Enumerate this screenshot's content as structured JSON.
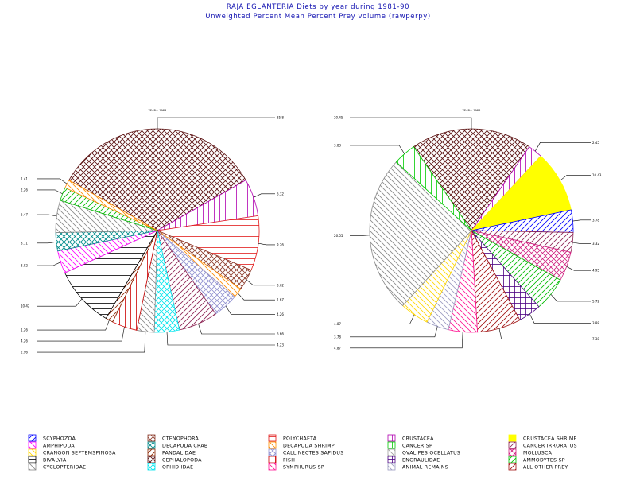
{
  "chart_data": {
    "type": "pie",
    "title": "RAJA EGLANTERIA Diets by year during 1981-90",
    "subtitle": "Unweighted Percent Mean Percent Prey  volume (rawperpy)",
    "legend_position": "bottom",
    "pies": [
      {
        "name": "YEAR= 1983",
        "slices": [
          {
            "category": "CEPHALOPODA",
            "value": 35.8,
            "label": "35.8"
          },
          {
            "category": "CRUSTACEA",
            "value": 6.32,
            "label": "6.32"
          },
          {
            "category": "POLYCHAETA",
            "value": 9.26,
            "label": "9.26"
          },
          {
            "category": "CTENOPHORA",
            "value": 3.62,
            "label": "3.62"
          },
          {
            "category": "DECAPODA SHRIMP",
            "value": 1.67,
            "label": "1.67"
          },
          {
            "category": "CALLINECTES SAPIDUS",
            "value": 4.26,
            "label": "4.26"
          },
          {
            "category": "CANCER IRRORATUS",
            "value": 6.66,
            "label": "6.66"
          },
          {
            "category": "OPHIDIIDAE",
            "value": 4.23,
            "label": "4.23"
          },
          {
            "category": "CYCLOPTERIDAE",
            "value": 2.96,
            "label": "2.96"
          },
          {
            "category": "FISH",
            "value": 4.26,
            "label": "4.26"
          },
          {
            "category": "PANDALIDAE",
            "value": 1.26,
            "label": "1.26"
          },
          {
            "category": "BIVALVIA",
            "value": 10.42,
            "label": "10.42"
          },
          {
            "category": "AMPHIPODA",
            "value": 3.82,
            "label": "3.82"
          },
          {
            "category": "DECAPODA CRAB",
            "value": 3.11,
            "label": "3.11"
          },
          {
            "category": "CYCLOPTERIDAE",
            "value": 5.47,
            "label": "5.47"
          },
          {
            "category": "AMMODYTES SP",
            "value": 2.26,
            "label": "2.26"
          },
          {
            "category": "DECAPODA SHRIMP",
            "value": 1.41,
            "label": "1.41"
          }
        ]
      },
      {
        "name": "YEAR= 1986",
        "slices": [
          {
            "category": "CEPHALOPODA",
            "value": 20.45,
            "label": "20.45"
          },
          {
            "category": "CRUSTACEA",
            "value": 2.45,
            "label": "2.45"
          },
          {
            "category": "CRUSTACEA SHRIMP",
            "value": 10.43,
            "label": "10.43"
          },
          {
            "category": "SCYPHOZOA",
            "value": 3.78,
            "label": "3.78"
          },
          {
            "category": "CANCER IRRORATUS",
            "value": 3.32,
            "label": "3.32"
          },
          {
            "category": "MOLLUSCA",
            "value": 4.95,
            "label": "4.95"
          },
          {
            "category": "AMMODYTES SP",
            "value": 5.72,
            "label": "5.72"
          },
          {
            "category": "ENGRAULIDAE",
            "value": 3.88,
            "label": "3.88"
          },
          {
            "category": "ALL OTHER PREY",
            "value": 7.38,
            "label": "7.38"
          },
          {
            "category": "SYMPHURUS SP",
            "value": 4.87,
            "label": "4.87"
          },
          {
            "category": "ANIMAL REMAINS",
            "value": 3.78,
            "label": "3.78"
          },
          {
            "category": "CRANGON SEPTEMSPINOSA",
            "value": 4.87,
            "label": "4.87"
          },
          {
            "category": "CYCLOPTERIDAE",
            "value": 26.55,
            "label": "26.55"
          },
          {
            "category": "CANCER SP",
            "value": 3.83,
            "label": "3.83"
          }
        ]
      }
    ]
  },
  "legend": [
    {
      "label": "SCYPHOZOA",
      "color": "#0000ff",
      "pattern": "d1"
    },
    {
      "label": "CTENOPHORA",
      "color": "#8b3a2a",
      "pattern": "x"
    },
    {
      "label": "POLYCHAETA",
      "color": "#e21a1a",
      "pattern": "h"
    },
    {
      "label": "CRUSTACEA",
      "color": "#b000b0",
      "pattern": "v"
    },
    {
      "label": "CRUSTACEA SHRIMP",
      "color": "#ffff00",
      "pattern": "solid"
    },
    {
      "label": "AMPHIPODA",
      "color": "#ff00ff",
      "pattern": "d2"
    },
    {
      "label": "DECAPODA CRAB",
      "color": "#008b8b",
      "pattern": "x"
    },
    {
      "label": "DECAPODA SHRIMP",
      "color": "#ff8c00",
      "pattern": "d2"
    },
    {
      "label": "CANCER SP",
      "color": "#00cc00",
      "pattern": "v"
    },
    {
      "label": "CANCER IRRORATUS",
      "color": "#8b2252",
      "pattern": "d1"
    },
    {
      "label": "CRANGON SEPTEMSPINOSA",
      "color": "#ffd700",
      "pattern": "d2"
    },
    {
      "label": "PANDALIDAE",
      "color": "#8b2500",
      "pattern": "d1"
    },
    {
      "label": "CALLINECTES SAPIDUS",
      "color": "#9090d0",
      "pattern": "x"
    },
    {
      "label": "OVALIPES OCELLATUS",
      "color": "#a0a0a0",
      "pattern": "d2"
    },
    {
      "label": "MOLLUSCA",
      "color": "#d02080",
      "pattern": "x"
    },
    {
      "label": "BIVALVIA",
      "color": "#000000",
      "pattern": "h"
    },
    {
      "label": "CEPHALOPODA",
      "color": "#5a1010",
      "pattern": "x"
    },
    {
      "label": "FISH",
      "color": "#cc0000",
      "pattern": "v"
    },
    {
      "label": "ENGRAULIDAE",
      "color": "#4b0082",
      "pattern": "grid"
    },
    {
      "label": "AMMODYTES SP",
      "color": "#00bb00",
      "pattern": "d1"
    },
    {
      "label": "CYCLOPTERIDAE",
      "color": "#888888",
      "pattern": "d2"
    },
    {
      "label": "OPHIDIIDAE",
      "color": "#00e5ee",
      "pattern": "x"
    },
    {
      "label": "SYMPHURUS SP",
      "color": "#ff1493",
      "pattern": "d2"
    },
    {
      "label": "ANIMAL REMAINS",
      "color": "#9a9ac0",
      "pattern": "d2"
    },
    {
      "label": "ALL OTHER PREY",
      "color": "#a01010",
      "pattern": "d1"
    }
  ]
}
